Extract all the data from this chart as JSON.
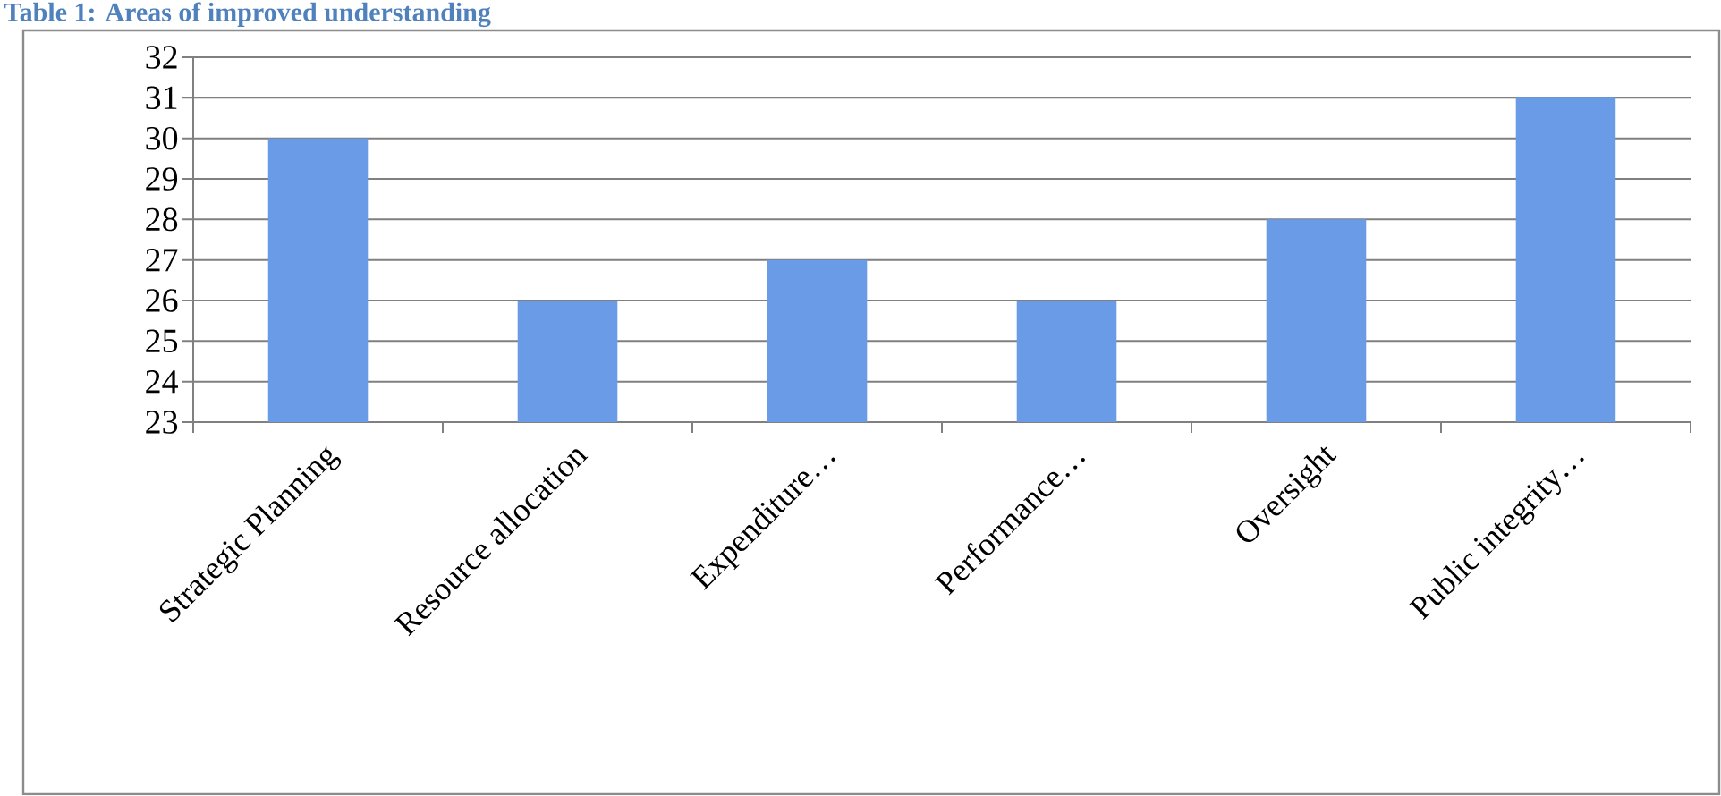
{
  "chart_data": {
    "type": "bar",
    "title": "Table 1: Areas of improved understanding",
    "categories": [
      "Strategic Planning",
      "Resource allocation",
      "Expenditure…",
      "Performance…",
      "Oversight",
      "Public integrity…"
    ],
    "values": [
      30,
      26,
      27,
      26,
      28,
      31
    ],
    "color": "#6a9be6",
    "ylim": [
      23,
      32
    ],
    "yticks": [
      23,
      24,
      25,
      26,
      27,
      28,
      29,
      30,
      31,
      32
    ],
    "grid": "y"
  }
}
